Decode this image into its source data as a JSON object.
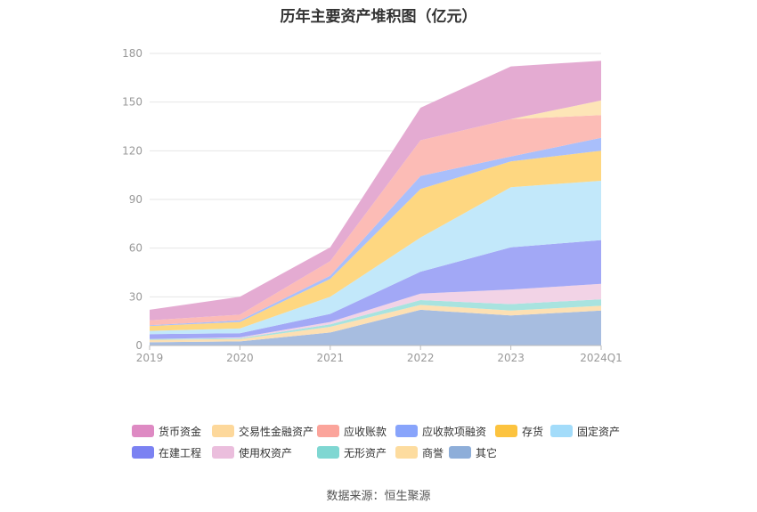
{
  "chart_data": {
    "type": "area",
    "stacked": true,
    "title": "历年主要资产堆积图（亿元）",
    "source": "数据来源：恒生聚源",
    "categories": [
      "2019",
      "2020",
      "2021",
      "2022",
      "2023",
      "2024Q1"
    ],
    "ylim": [
      0,
      180
    ],
    "yticks": [
      0,
      30,
      60,
      90,
      120,
      150,
      180
    ],
    "grid": true,
    "legend_position": "bottom",
    "series": [
      {
        "name": "其它",
        "color": "#a7bde0",
        "values": [
          2,
          2.5,
          8,
          22,
          18.5,
          21.5
        ]
      },
      {
        "name": "商誉",
        "color": "#fde0b3",
        "values": [
          1.5,
          1.5,
          3.5,
          3,
          3,
          3
        ]
      },
      {
        "name": "无形资产",
        "color": "#a8e3df",
        "values": [
          0.5,
          0.5,
          1.5,
          3,
          4,
          4
        ]
      },
      {
        "name": "使用权资产",
        "color": "#f2d3e6",
        "values": [
          0,
          0.5,
          1.5,
          4,
          9,
          9.5
        ]
      },
      {
        "name": "在建工程",
        "color": "#a2a8f6",
        "values": [
          3,
          2.5,
          5,
          13.5,
          26,
          27
        ]
      },
      {
        "name": "固定资产",
        "color": "#c2e8fa",
        "values": [
          2,
          3,
          10.5,
          21,
          37,
          36.5
        ]
      },
      {
        "name": "存货",
        "color": "#fed781",
        "values": [
          3,
          4,
          11,
          30,
          16,
          18.5
        ]
      },
      {
        "name": "应收款项融资",
        "color": "#a9bffb",
        "values": [
          0.5,
          1,
          2,
          8,
          3,
          8
        ]
      },
      {
        "name": "应收账款",
        "color": "#fcbcb6",
        "values": [
          3,
          3.5,
          9,
          22,
          23,
          14
        ]
      },
      {
        "name": "交易性金融资产",
        "color": "#fde5b7",
        "values": [
          0,
          0,
          0,
          0,
          0,
          9
        ]
      },
      {
        "name": "货币资金",
        "color": "#e4abd2",
        "values": [
          6.5,
          11,
          8.5,
          20,
          32.5,
          24.5
        ]
      }
    ]
  },
  "legend_rows": [
    [
      {
        "label": "货币资金",
        "color": "#de8ac3"
      },
      {
        "label": "交易性金融资产",
        "color": "#fdd89b"
      },
      {
        "label": "应收账款",
        "color": "#fba49b"
      },
      {
        "label": "应收款项融资",
        "color": "#88a4fb"
      },
      {
        "label": "存货",
        "color": "#fcc33f"
      },
      {
        "label": "固定资产",
        "color": "#a3dcfa"
      }
    ],
    [
      {
        "label": "在建工程",
        "color": "#7b82f2"
      },
      {
        "label": "使用权资产",
        "color": "#ebbedd"
      },
      {
        "label": "无形资产",
        "color": "#7fd7d2"
      },
      {
        "label": "商誉",
        "color": "#fddc9f"
      },
      {
        "label": "其它",
        "color": "#8eaed9"
      }
    ]
  ]
}
